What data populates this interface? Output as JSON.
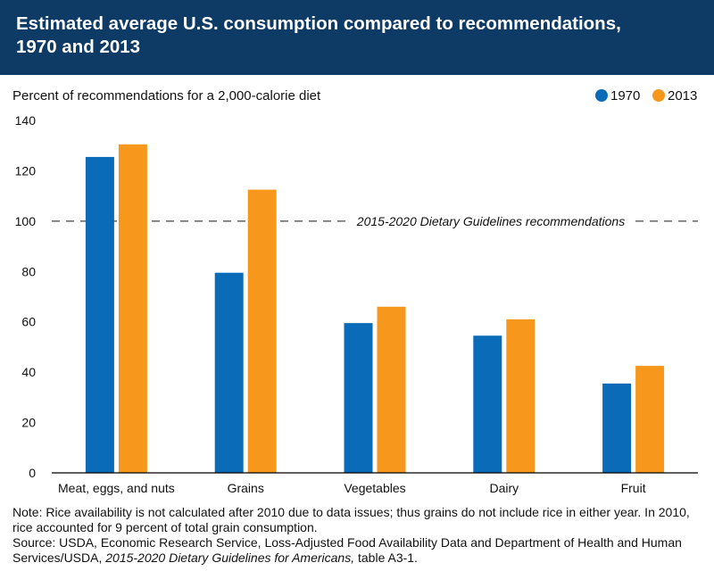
{
  "header": {
    "title_line1": "Estimated average U.S. consumption compared to recommendations,",
    "title_line2": "1970 and 2013"
  },
  "chart_data": {
    "type": "bar",
    "subtitle": "Percent of recommendations for a 2,000-calorie diet",
    "categories": [
      "Meat, eggs, and nuts",
      "Grains",
      "Vegetables",
      "Dairy",
      "Fruit"
    ],
    "series": [
      {
        "name": "1970",
        "color": "#0a6cb8",
        "values": [
          125.5,
          79.5,
          59.5,
          54.5,
          35.5
        ]
      },
      {
        "name": "2013",
        "color": "#f7981d",
        "values": [
          130.5,
          112.5,
          66,
          61,
          42.5
        ]
      }
    ],
    "ylim": [
      0,
      140
    ],
    "yticks": [
      0,
      20,
      40,
      60,
      80,
      100,
      120,
      140
    ],
    "reference_line": {
      "value": 100,
      "label": "2015-2020 Dietary Guidelines recommendations"
    },
    "legend_position": "top-right"
  },
  "notes": {
    "note": "Note: Rice availability is not calculated after 2010 due to data issues; thus grains do not include rice in either year. In 2010, rice accounted for 9 percent of total grain consumption.",
    "source_prefix": "Source: USDA, Economic Research Service, Loss-Adjusted Food Availability Data and Department of Health and Human Services/USDA,",
    "source_italic": "2015-2020 Dietary Guidelines for Americans,",
    "source_suffix": "table A3-1."
  }
}
